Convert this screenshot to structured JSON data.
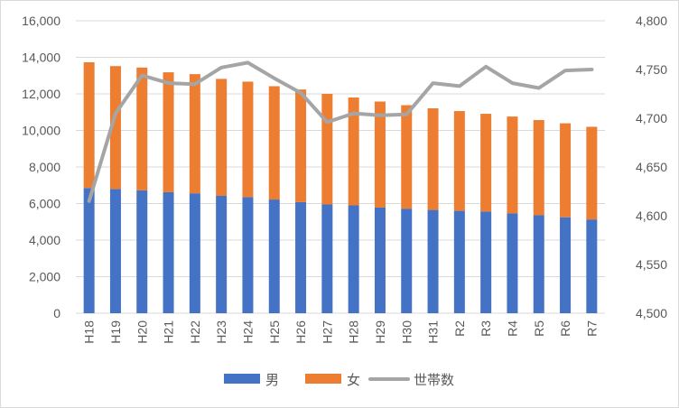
{
  "chart_data": {
    "type": "bar",
    "stacked": true,
    "categories": [
      "H18",
      "H19",
      "H20",
      "H21",
      "H22",
      "H23",
      "H24",
      "H25",
      "H26",
      "H27",
      "H28",
      "H29",
      "H30",
      "H31",
      "R2",
      "R3",
      "R4",
      "R5",
      "R6",
      "R7"
    ],
    "series": [
      {
        "name": "男",
        "axis": "left",
        "color": "#4472c4",
        "values": [
          6850,
          6800,
          6720,
          6620,
          6560,
          6420,
          6350,
          6220,
          6080,
          5950,
          5900,
          5780,
          5720,
          5650,
          5600,
          5560,
          5460,
          5360,
          5250,
          5130
        ]
      },
      {
        "name": "女",
        "axis": "left",
        "color": "#ed7d31",
        "values": [
          6880,
          6720,
          6720,
          6560,
          6520,
          6400,
          6320,
          6200,
          6160,
          6050,
          5900,
          5800,
          5660,
          5560,
          5460,
          5350,
          5300,
          5210,
          5140,
          5070
        ]
      },
      {
        "name": "世帯数",
        "axis": "right",
        "type": "line",
        "color": "#a5a5a5",
        "values": [
          4615,
          4705,
          4744,
          4736,
          4735,
          4752,
          4757,
          4741,
          4726,
          4696,
          4705,
          4703,
          4704,
          4736,
          4733,
          4753,
          4736,
          4731,
          4749,
          4750
        ]
      }
    ],
    "y_left": {
      "min": 0,
      "max": 16000,
      "ticks": [
        "0",
        "2,000",
        "4,000",
        "6,000",
        "8,000",
        "10,000",
        "12,000",
        "14,000",
        "16,000"
      ]
    },
    "y_right": {
      "min": 4500,
      "max": 4800,
      "ticks": [
        "4,500",
        "4,550",
        "4,600",
        "4,650",
        "4,700",
        "4,750",
        "4,800"
      ]
    },
    "grid": true,
    "legend_position": "bottom"
  }
}
